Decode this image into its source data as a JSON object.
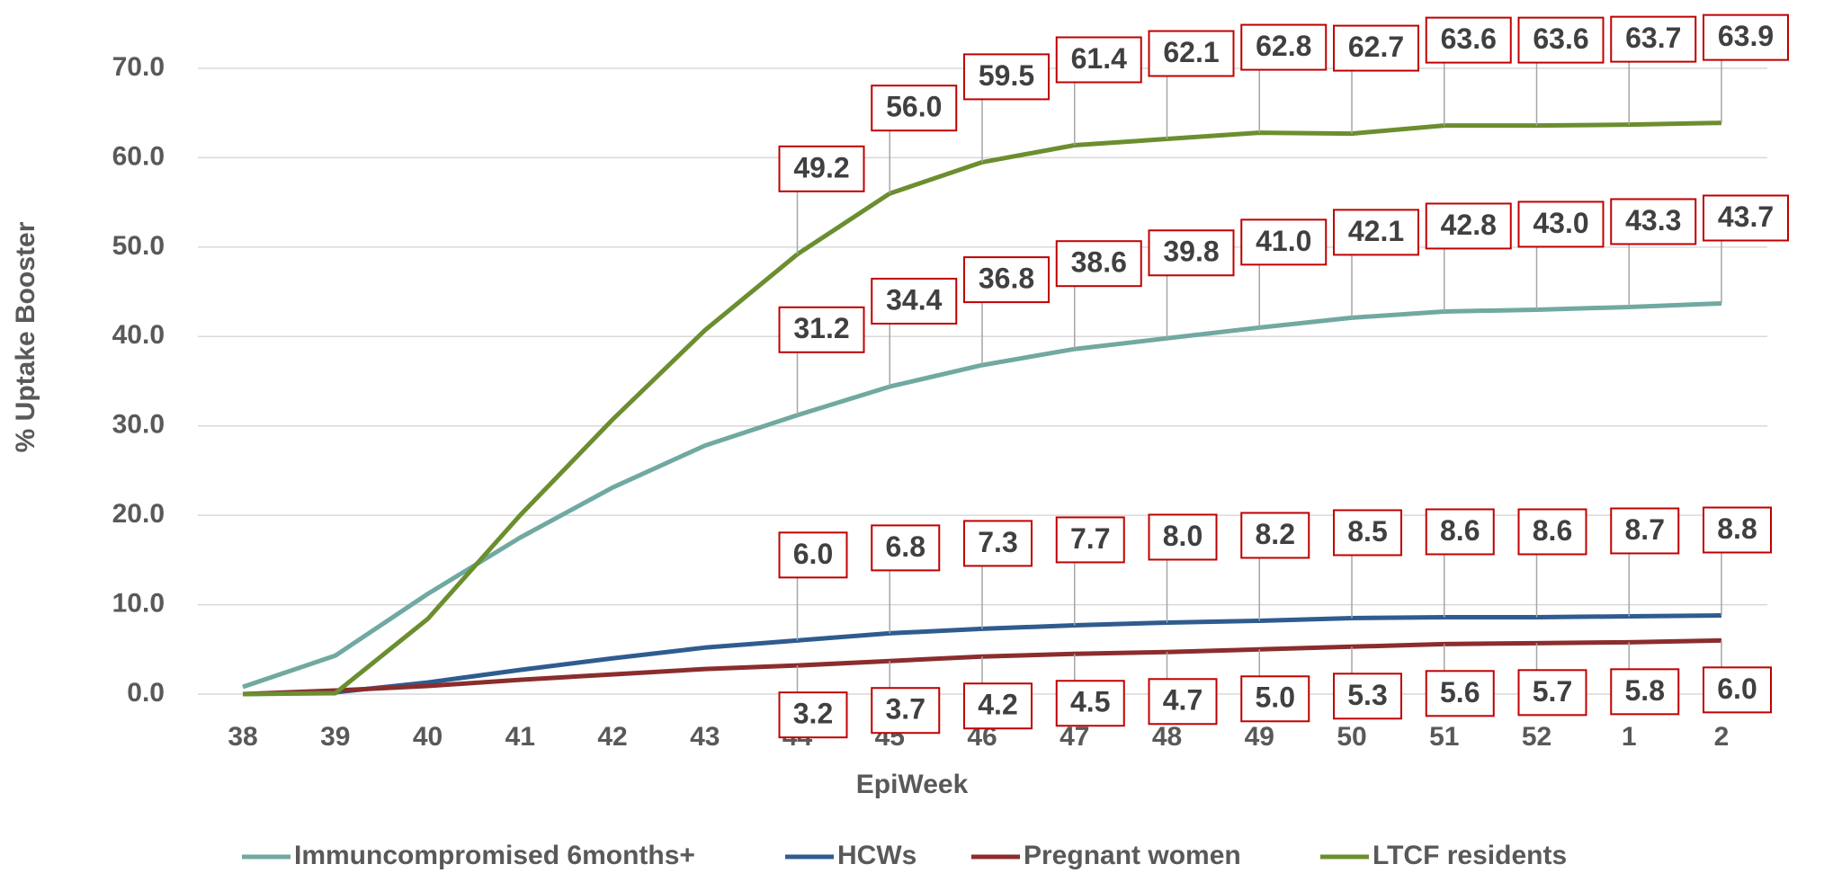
{
  "chart_data": {
    "type": "line",
    "x_label": "EpiWeek",
    "y_label": "% Uptake Booster",
    "categories": [
      "38",
      "39",
      "40",
      "41",
      "42",
      "43",
      "44",
      "45",
      "46",
      "47",
      "48",
      "49",
      "50",
      "51",
      "52",
      "1",
      "2"
    ],
    "ylim": [
      0,
      70
    ],
    "yticks": [
      {
        "value": 0,
        "label": "0.0"
      },
      {
        "value": 10,
        "label": "10.0"
      },
      {
        "value": 20,
        "label": "20.0"
      },
      {
        "value": 30,
        "label": "30.0"
      },
      {
        "value": 40,
        "label": "40.0"
      },
      {
        "value": 50,
        "label": "50.0"
      },
      {
        "value": 60,
        "label": "60.0"
      },
      {
        "value": 70,
        "label": "70.0"
      }
    ],
    "grid": true,
    "legend": "bottom",
    "series": [
      {
        "name": "Immuncompromised 6months+",
        "color": "#70a9a1",
        "label_side": "above",
        "values": [
          0.8,
          4.3,
          11.2,
          17.5,
          23.1,
          27.8,
          31.2,
          34.4,
          36.8,
          38.6,
          39.8,
          41.0,
          42.1,
          42.8,
          43.0,
          43.3,
          43.7
        ],
        "value_labels": [
          null,
          null,
          null,
          null,
          null,
          null,
          "31.2",
          "34.4",
          "36.8",
          "38.6",
          "39.8",
          "41.0",
          "42.1",
          "42.8",
          "43.0",
          "43.3",
          "43.7"
        ]
      },
      {
        "name": "HCWs",
        "color": "#2f5c8f",
        "label_side": "above",
        "values": [
          0,
          0.2,
          1.3,
          2.7,
          4.0,
          5.2,
          6.0,
          6.8,
          7.3,
          7.7,
          8.0,
          8.2,
          8.5,
          8.6,
          8.6,
          8.7,
          8.8
        ],
        "value_labels": [
          null,
          null,
          null,
          null,
          null,
          null,
          "6.0",
          "6.8",
          "7.3",
          "7.7",
          "8.0",
          "8.2",
          "8.5",
          "8.6",
          "8.6",
          "8.7",
          "8.8"
        ]
      },
      {
        "name": "Pregnant women",
        "color": "#8b2d2d",
        "label_side": "below",
        "values": [
          0,
          0.4,
          0.9,
          1.6,
          2.2,
          2.8,
          3.2,
          3.7,
          4.2,
          4.5,
          4.7,
          5.0,
          5.3,
          5.6,
          5.7,
          5.8,
          6.0
        ],
        "value_labels": [
          null,
          null,
          null,
          null,
          null,
          null,
          "3.2",
          "3.7",
          "4.2",
          "4.5",
          "4.7",
          "5.0",
          "5.3",
          "5.6",
          "5.7",
          "5.8",
          "6.0"
        ]
      },
      {
        "name": "LTCF residents",
        "color": "#6b8e2f",
        "label_side": "above",
        "values": [
          0,
          0.1,
          8.4,
          20.0,
          30.7,
          40.7,
          49.2,
          56.0,
          59.5,
          61.4,
          62.1,
          62.8,
          62.7,
          63.6,
          63.6,
          63.7,
          63.9
        ],
        "value_labels": [
          null,
          null,
          null,
          null,
          null,
          null,
          "49.2",
          "56.0",
          "59.5",
          "61.4",
          "62.1",
          "62.8",
          "62.7",
          "63.6",
          "63.6",
          "63.7",
          "63.9"
        ]
      }
    ]
  }
}
